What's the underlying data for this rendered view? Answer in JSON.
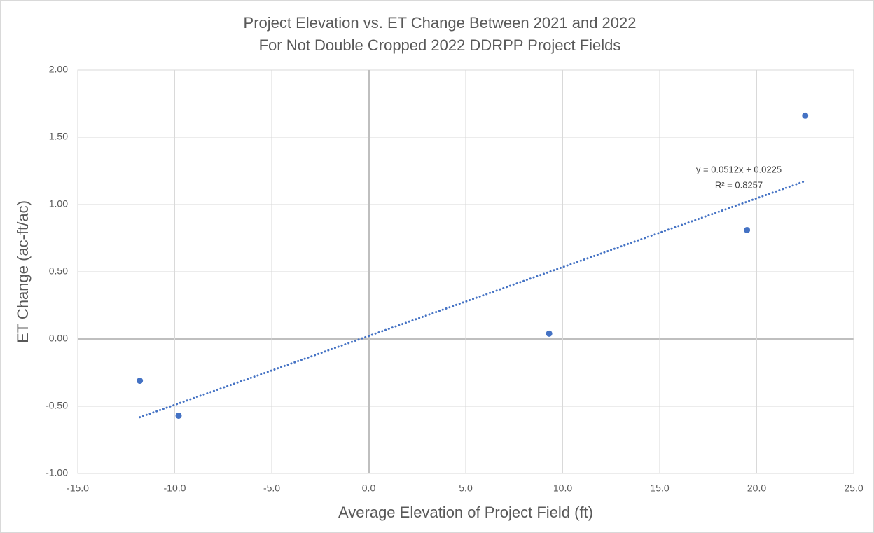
{
  "chart_data": {
    "type": "scatter",
    "title": [
      "Project Elevation vs. ET Change Between 2021 and 2022",
      "For Not Double Cropped 2022 DDRPP Project Fields"
    ],
    "x_label": "Average Elevation of Project Field (ft)",
    "y_label": "ET Change (ac-ft/ac)",
    "series": [
      {
        "color": "#4472c4",
        "x": [
          -11.8,
          -9.8,
          9.3,
          19.5,
          22.5
        ],
        "values": [
          -0.31,
          -0.57,
          0.04,
          0.81,
          1.66
        ]
      }
    ],
    "trendline": {
      "equation": "y = 0.0512x + 0.0225",
      "r_squared": "R² = 0.8257",
      "slope": 0.0512,
      "intercept": 0.0225,
      "color": "#4472c4"
    },
    "xlim": [
      -15,
      25
    ],
    "xticks": [
      {
        "value": -15,
        "label": "-15.0"
      },
      {
        "value": -10,
        "label": "-10.0"
      },
      {
        "value": -5,
        "label": "-5.0"
      },
      {
        "value": 0,
        "label": "0.0"
      },
      {
        "value": 5,
        "label": "5.0"
      },
      {
        "value": 10,
        "label": "10.0"
      },
      {
        "value": 15,
        "label": "15.0"
      },
      {
        "value": 20,
        "label": "20.0"
      },
      {
        "value": 25,
        "label": "25.0"
      }
    ],
    "ylim": [
      -1,
      2
    ],
    "yticks": [
      {
        "value": -1,
        "label": "-1.00"
      },
      {
        "value": -0.5,
        "label": "-0.50"
      },
      {
        "value": 0,
        "label": "0.00"
      },
      {
        "value": 0.5,
        "label": "0.50"
      },
      {
        "value": 1,
        "label": "1.00"
      },
      {
        "value": 1.5,
        "label": "1.50"
      },
      {
        "value": 2,
        "label": "2.00"
      }
    ],
    "grid": true
  }
}
